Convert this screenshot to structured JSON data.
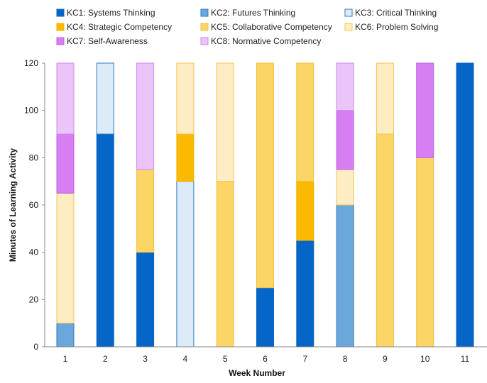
{
  "chart_data": {
    "type": "bar",
    "stacked": true,
    "title": "",
    "xlabel": "Week Number",
    "ylabel": "Minutes of Learning Activity",
    "ylim": [
      0,
      120
    ],
    "yticks": [
      0,
      20,
      40,
      60,
      80,
      100,
      120
    ],
    "grid": false,
    "legend_position": "top",
    "categories": [
      "1",
      "2",
      "3",
      "4",
      "5",
      "6",
      "7",
      "8",
      "9",
      "10",
      "11"
    ],
    "series": [
      {
        "name": "KC1: Systems Thinking",
        "fill": "#0566C8",
        "stroke": "#0566C8",
        "values": [
          0,
          90,
          40,
          0,
          0,
          25,
          45,
          0,
          0,
          0,
          120
        ]
      },
      {
        "name": "KC2: Futures Thinking",
        "fill": "#6AA8DC",
        "stroke": "#2F78BD",
        "values": [
          10,
          0,
          0,
          0,
          0,
          0,
          0,
          60,
          0,
          0,
          0
        ]
      },
      {
        "name": "KC3: Critical Thinking",
        "fill": "#DCEBF7",
        "stroke": "#2F78BD",
        "values": [
          0,
          30,
          0,
          70,
          0,
          0,
          0,
          0,
          0,
          0,
          0
        ]
      },
      {
        "name": "KC4: Strategic Competency",
        "fill": "#FBBA00",
        "stroke": "#F0B000",
        "values": [
          0,
          0,
          0,
          20,
          0,
          0,
          25,
          0,
          0,
          0,
          0
        ]
      },
      {
        "name": "KC5: Collaborative Competency",
        "fill": "#FCD567",
        "stroke": "#F0C040",
        "values": [
          0,
          0,
          35,
          0,
          70,
          95,
          50,
          0,
          90,
          80,
          0
        ]
      },
      {
        "name": "KC6: Problem Solving",
        "fill": "#FEEDC3",
        "stroke": "#F2C450",
        "values": [
          55,
          0,
          0,
          30,
          50,
          0,
          0,
          15,
          30,
          0,
          0
        ]
      },
      {
        "name": "KC7: Self-Awareness",
        "fill": "#D67EF2",
        "stroke": "#C060E4",
        "values": [
          25,
          0,
          0,
          0,
          0,
          0,
          0,
          25,
          0,
          40,
          0
        ]
      },
      {
        "name": "KC8: Normative Competency",
        "fill": "#EBC4FA",
        "stroke": "#CC88EE",
        "values": [
          30,
          0,
          45,
          0,
          0,
          0,
          0,
          20,
          0,
          0,
          0
        ]
      }
    ]
  }
}
